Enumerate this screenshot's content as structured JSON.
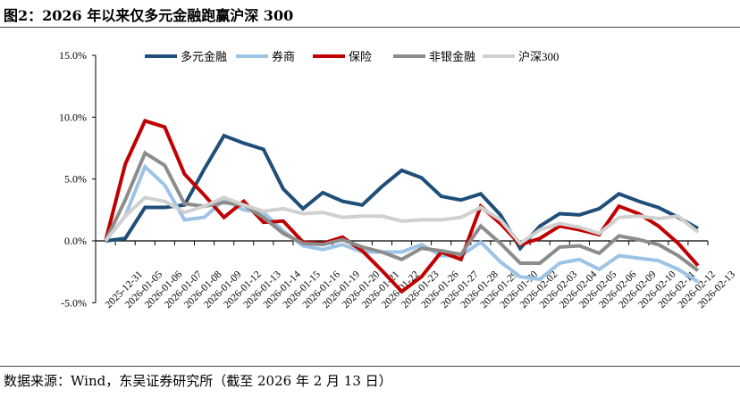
{
  "title": "图2：2026 年以来仅多元金融跑赢沪深 300",
  "source": "数据来源：Wind，东吴证券研究所（截至 2026 年 2 月 13 日）",
  "chart_data": {
    "type": "line",
    "ylim": [
      -5,
      15
    ],
    "yticks": [
      "15.0%",
      "10.0%",
      "5.0%",
      "0.0%",
      "-5.0%"
    ],
    "ytick_values": [
      15,
      10,
      5,
      0,
      -5
    ],
    "legend_position": "top",
    "grid": false,
    "categories": [
      "2025-12-31",
      "2026-01-05",
      "2026-01-06",
      "2026-01-07",
      "2026-01-08",
      "2026-01-09",
      "2026-01-12",
      "2026-01-13",
      "2026-01-14",
      "2026-01-15",
      "2026-01-16",
      "2026-01-19",
      "2026-01-20",
      "2026-01-21",
      "2026-01-22",
      "2026-01-23",
      "2026-01-26",
      "2026-01-27",
      "2026-01-28",
      "2026-01-29",
      "2026-01-30",
      "2026-02-02",
      "2026-02-03",
      "2026-02-04",
      "2026-02-05",
      "2026-02-06",
      "2026-02-09",
      "2026-02-10",
      "2026-02-11",
      "2026-02-12",
      "2026-02-13"
    ],
    "series": [
      {
        "name": "多元金融",
        "color": "#1f4e79",
        "values": [
          0,
          0.2,
          2.7,
          2.7,
          2.9,
          5.8,
          8.5,
          7.9,
          7.4,
          4.2,
          2.6,
          3.9,
          3.2,
          2.9,
          4.4,
          5.7,
          5.1,
          3.6,
          3.3,
          3.8,
          2.1,
          -0.6,
          1.2,
          2.2,
          2.1,
          2.6,
          3.8,
          3.2,
          2.7,
          1.9,
          1.0
        ]
      },
      {
        "name": "券商",
        "color": "#9dc3e6",
        "values": [
          0,
          2.0,
          6.0,
          4.5,
          1.7,
          1.9,
          3.3,
          2.5,
          2.3,
          0.8,
          -0.4,
          -0.7,
          -0.3,
          -0.9,
          -0.9,
          -0.9,
          -0.3,
          -1.2,
          -1.2,
          -0.1,
          -1.7,
          -2.9,
          -3.1,
          -1.8,
          -1.5,
          -2.3,
          -1.2,
          -1.4,
          -1.6,
          -2.3,
          -3.3
        ]
      },
      {
        "name": "保险",
        "color": "#c00000",
        "values": [
          0,
          6.2,
          9.7,
          9.2,
          5.4,
          3.7,
          1.9,
          3.2,
          1.5,
          1.6,
          -0.1,
          -0.2,
          0.3,
          -0.8,
          -2.4,
          -4.1,
          -2.9,
          -0.9,
          -1.5,
          2.8,
          1.4,
          -0.3,
          0.2,
          1.2,
          0.9,
          0.5,
          2.8,
          2.2,
          1.2,
          -0.2,
          -2.0
        ]
      },
      {
        "name": "非银金融",
        "color": "#8c8c8c",
        "values": [
          0,
          3.3,
          7.1,
          6.1,
          3.0,
          2.8,
          3.1,
          2.9,
          1.9,
          0.6,
          -0.2,
          -0.3,
          0.1,
          -0.5,
          -0.9,
          -1.5,
          -0.6,
          -0.8,
          -1.1,
          1.2,
          -0.2,
          -1.8,
          -1.8,
          -0.5,
          -0.4,
          -1.0,
          0.4,
          0.1,
          -0.3,
          -1.2,
          -2.4
        ]
      },
      {
        "name": "沪深300",
        "color": "#d0d0d0",
        "values": [
          0,
          2.0,
          3.5,
          3.2,
          2.3,
          2.8,
          3.5,
          2.9,
          2.4,
          2.6,
          2.2,
          2.3,
          1.9,
          2.0,
          2.0,
          1.6,
          1.7,
          1.7,
          1.9,
          2.7,
          1.7,
          -0.2,
          0.9,
          1.4,
          1.1,
          0.6,
          1.9,
          2.0,
          1.8,
          2.0,
          0.7
        ]
      }
    ]
  }
}
